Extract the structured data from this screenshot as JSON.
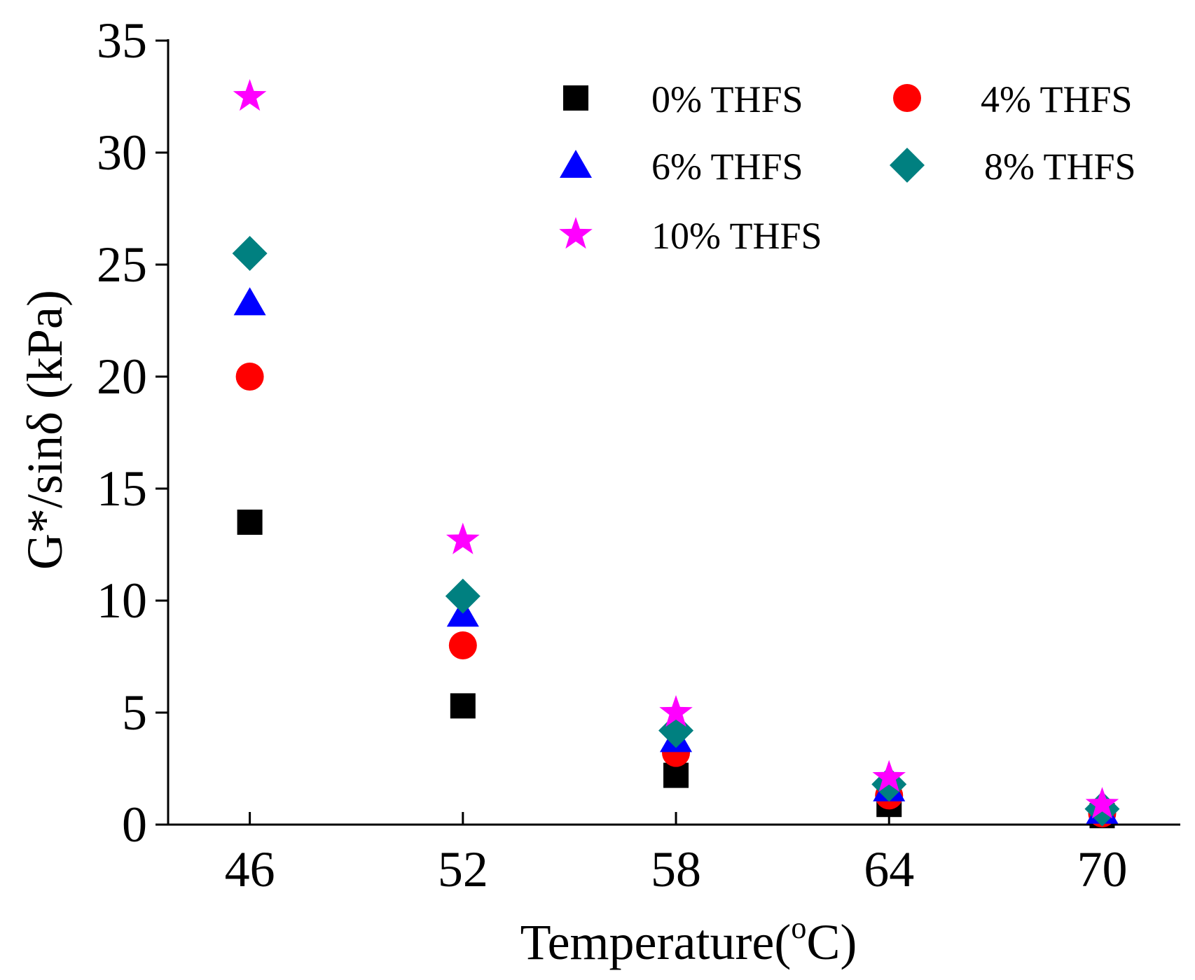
{
  "chart_data": {
    "type": "scatter",
    "title": "",
    "xlabel_main": "Temperature(",
    "xlabel_sup": "o",
    "xlabel_end": "C)",
    "ylabel": "G*/sinδ (kPa)",
    "categories": [
      "46",
      "52",
      "58",
      "64",
      "70"
    ],
    "x": [
      46,
      52,
      58,
      64,
      70
    ],
    "xlim": [
      43.7,
      72.2
    ],
    "ylim": [
      0,
      35
    ],
    "yticks": [
      0,
      5,
      10,
      15,
      20,
      25,
      30,
      35
    ],
    "yticks_labels": [
      "0",
      "5",
      "10",
      "15",
      "20",
      "25",
      "30",
      "35"
    ],
    "grid": false,
    "legend_position": "top-right",
    "series": [
      {
        "name": "0% THFS",
        "marker": "square",
        "color": "#000000",
        "values": [
          13.5,
          5.3,
          2.2,
          0.9,
          0.4
        ]
      },
      {
        "name": "4% THFS",
        "marker": "circle",
        "color": "#ff0000",
        "values": [
          20.0,
          8.0,
          3.2,
          1.3,
          0.5
        ]
      },
      {
        "name": "6% THFS",
        "marker": "triangle",
        "color": "#0000ff",
        "values": [
          23.3,
          9.4,
          3.8,
          1.6,
          0.6
        ]
      },
      {
        "name": "8% THFS",
        "marker": "diamond",
        "color": "#008080",
        "values": [
          25.5,
          10.2,
          4.2,
          1.8,
          0.7
        ]
      },
      {
        "name": "10% THFS",
        "marker": "star",
        "color": "#ff00ff",
        "values": [
          32.5,
          12.7,
          5.0,
          2.1,
          0.9
        ]
      }
    ]
  }
}
